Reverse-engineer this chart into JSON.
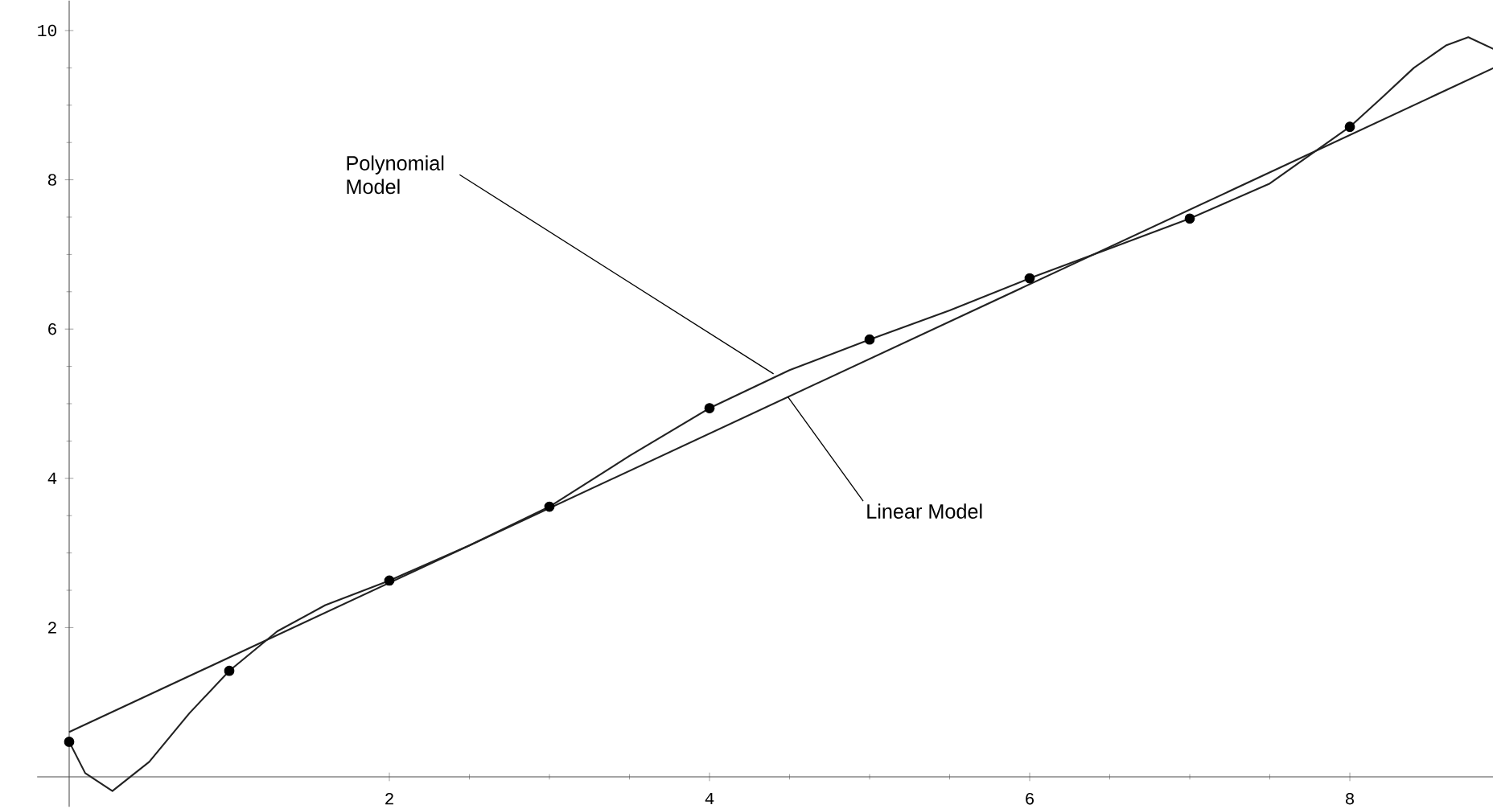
{
  "chart_data": {
    "type": "line",
    "xlim": [
      -0.2,
      8.9
    ],
    "ylim": [
      -0.4,
      10.4
    ],
    "xticks": [
      2,
      4,
      6,
      8
    ],
    "yticks": [
      2,
      4,
      6,
      8,
      10
    ],
    "series": [
      {
        "color": "#222222",
        "x": [
          0,
          8.9
        ],
        "values": [
          0.6,
          9.5
        ]
      },
      {
        "color": "#222222",
        "x": [
          0,
          0.1,
          0.27,
          0.5,
          0.75,
          1,
          1.3,
          1.6,
          2,
          2.5,
          3,
          3.5,
          4,
          4.5,
          5,
          5.5,
          6,
          6.5,
          7,
          7.5,
          8,
          8.2,
          8.4,
          8.6,
          8.74,
          8.9
        ],
        "values": [
          0.47,
          0.05,
          -0.19,
          0.2,
          0.85,
          1.42,
          1.95,
          2.3,
          2.63,
          3.1,
          3.62,
          4.3,
          4.94,
          5.45,
          5.86,
          6.25,
          6.68,
          7.08,
          7.48,
          7.95,
          8.71,
          9.1,
          9.5,
          9.8,
          9.91,
          9.75
        ]
      },
      {
        "type": "scatter",
        "color": "#000000",
        "marker": "circle",
        "x": [
          0,
          1,
          2,
          3,
          4,
          5,
          6,
          7,
          8
        ],
        "values": [
          0.47,
          1.42,
          2.63,
          3.62,
          4.94,
          5.86,
          6.68,
          7.48,
          8.71
        ]
      }
    ],
    "annotations": [
      {
        "text": "Polynomial Model",
        "x": 4.4,
        "y": 5.4
      },
      {
        "text": "Linear Model",
        "x": 4.49,
        "y": 5.09
      }
    ]
  }
}
